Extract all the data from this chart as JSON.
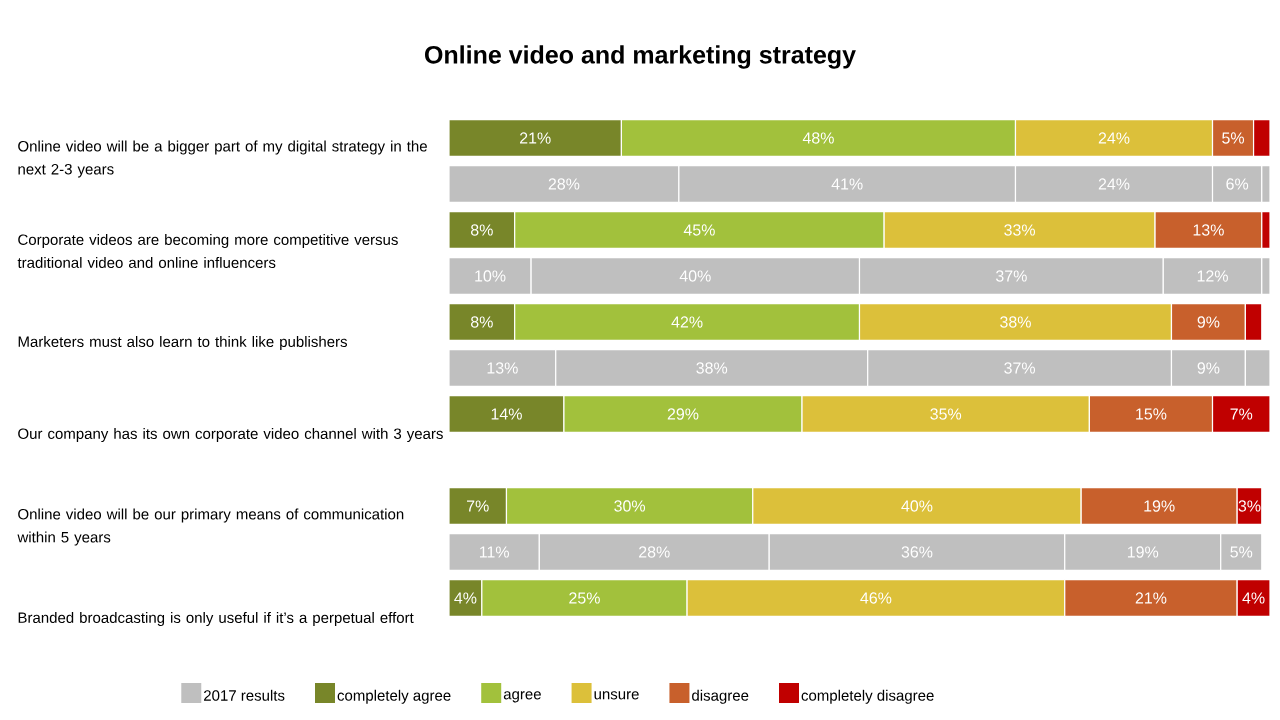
{
  "chart_data": {
    "type": "bar",
    "title": "Online video and marketing strategy",
    "orientation": "horizontal",
    "stacked": true,
    "xlim": [
      0,
      100
    ],
    "legend": "bottom",
    "categories": [
      "Online video will be a bigger part of my digital strategy in the next 2-3 years",
      null,
      "Corporate videos are becoming more competitive versus traditional video and online influencers",
      null,
      "Marketers must also learn to think like publishers",
      null,
      "Our company has its own corporate video channel with 3 years",
      null,
      "Online video will be our primary means of communication within 5 years",
      null,
      "Branded broadcasting is only useful if it’s a perpetual effort",
      null
    ],
    "series": [
      {
        "name": "2017 results",
        "color": "#bfbfbf",
        "values": [
          null,
          null,
          null,
          null,
          null,
          null,
          null,
          null,
          null,
          null,
          null,
          null
        ]
      },
      {
        "name": "completely agree",
        "color": "#788629",
        "colors": [
          "#788629",
          "#bfbfbf",
          "#788629",
          "#bfbfbf",
          "#788629",
          "#bfbfbf",
          "#788629",
          "#bfbfbf",
          "#788629",
          "#bfbfbf",
          "#788629",
          "#bfbfbf"
        ],
        "values": [
          21,
          28,
          8,
          10,
          8,
          13,
          14,
          null,
          7,
          11,
          4,
          null
        ],
        "value_labels": [
          "21%",
          "28%",
          "8%",
          "10%",
          "8%",
          "13%",
          "14%",
          null,
          "7%",
          "11%",
          "4%",
          null
        ]
      },
      {
        "name": "agree",
        "color": "#a2c13c",
        "colors": [
          "#a2c13c",
          "#bfbfbf",
          "#a2c13c",
          "#bfbfbf",
          "#a2c13c",
          "#bfbfbf",
          "#a2c13c",
          "#bfbfbf",
          "#a2c13c",
          "#bfbfbf",
          "#a2c13c",
          "#bfbfbf"
        ],
        "values": [
          48,
          41,
          45,
          40,
          42,
          38,
          29,
          null,
          30,
          28,
          25,
          null
        ],
        "value_labels": [
          "48%",
          "41%",
          "45%",
          "40%",
          "42%",
          "38%",
          "29%",
          null,
          "30%",
          "28%",
          "25%",
          null
        ]
      },
      {
        "name": "unsure",
        "color": "#dcc03a",
        "colors": [
          "#dcc03a",
          "#bfbfbf",
          "#dcc03a",
          "#bfbfbf",
          "#dcc03a",
          "#bfbfbf",
          "#dcc03a",
          "#bfbfbf",
          "#dcc03a",
          "#bfbfbf",
          "#dcc03a",
          "#bfbfbf"
        ],
        "values": [
          24,
          24,
          33,
          37,
          38,
          37,
          35,
          null,
          40,
          36,
          46,
          null
        ],
        "value_labels": [
          "24%",
          "24%",
          "33%",
          "37%",
          "38%",
          "37%",
          "35%",
          null,
          "40%",
          "36%",
          "46%",
          null
        ]
      },
      {
        "name": "disagree",
        "color": "#c8602c",
        "colors": [
          "#c8602c",
          "#bfbfbf",
          "#c8602c",
          "#bfbfbf",
          "#c8602c",
          "#bfbfbf",
          "#c8602c",
          "#bfbfbf",
          "#c8602c",
          "#bfbfbf",
          "#c8602c",
          "#bfbfbf"
        ],
        "values": [
          5,
          6,
          13,
          12,
          9,
          9,
          15,
          null,
          19,
          19,
          21,
          null
        ],
        "value_labels": [
          "5%",
          "6%",
          "13%",
          "12%",
          "9%",
          "9%",
          "15%",
          null,
          "19%",
          "19%",
          "21%",
          null
        ]
      },
      {
        "name": "completely disagree",
        "color": "#c00000",
        "colors": [
          "#c00000",
          "#bfbfbf",
          "#c00000",
          "#bfbfbf",
          "#c00000",
          "#bfbfbf",
          "#c00000",
          "#bfbfbf",
          "#c00000",
          "#bfbfbf",
          "#c00000",
          "#bfbfbf"
        ],
        "values": [
          2,
          1,
          1,
          1,
          2,
          3,
          7,
          null,
          3,
          5,
          4,
          null
        ],
        "value_labels": [
          null,
          null,
          null,
          null,
          null,
          null,
          "7%",
          null,
          "3%",
          "5%",
          "4%",
          null
        ]
      }
    ]
  }
}
